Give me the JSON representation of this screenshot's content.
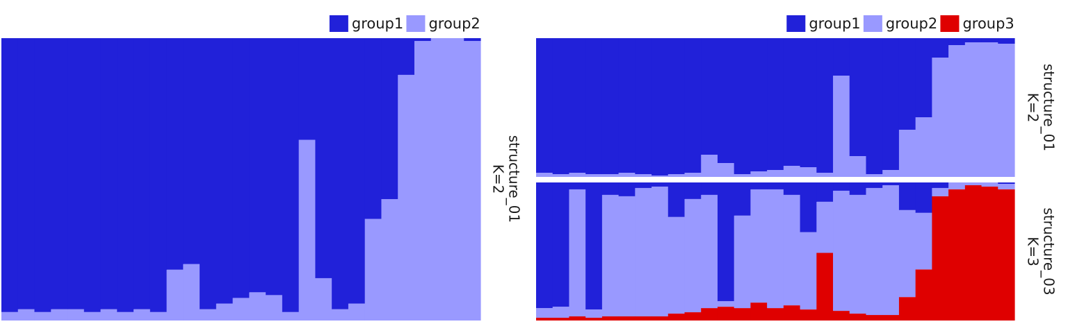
{
  "colors": {
    "group1": "#2121d9",
    "group2": "#9999ff",
    "group3": "#df0000"
  },
  "chart_data": [
    {
      "type": "bar",
      "stacked": true,
      "normalized": true,
      "legend": [
        "group1",
        "group2"
      ],
      "legend_position": "top-right",
      "strip_label": [
        "structure_01",
        "K=2"
      ],
      "n_samples": 29,
      "series": [
        {
          "name": "group1",
          "values": [
            0.97,
            0.96,
            0.97,
            0.96,
            0.96,
            0.97,
            0.96,
            0.97,
            0.96,
            0.97,
            0.82,
            0.8,
            0.96,
            0.94,
            0.92,
            0.9,
            0.91,
            0.97,
            0.36,
            0.85,
            0.96,
            0.94,
            0.64,
            0.57,
            0.13,
            0.01,
            0.0,
            0.0,
            0.01
          ]
        },
        {
          "name": "group2",
          "values": [
            0.03,
            0.04,
            0.03,
            0.04,
            0.04,
            0.03,
            0.04,
            0.03,
            0.04,
            0.03,
            0.18,
            0.2,
            0.04,
            0.06,
            0.08,
            0.1,
            0.09,
            0.03,
            0.64,
            0.15,
            0.04,
            0.06,
            0.36,
            0.43,
            0.87,
            0.99,
            1.0,
            1.0,
            0.99
          ]
        }
      ]
    },
    {
      "type": "bar",
      "stacked": true,
      "normalized": true,
      "legend": [
        "group1",
        "group2",
        "group3"
      ],
      "legend_position": "top-right",
      "panels": [
        {
          "strip_label": [
            "structure_01",
            "K=2"
          ],
          "series": [
            {
              "name": "group1",
              "values": [
                0.97,
                0.98,
                0.97,
                0.98,
                0.98,
                0.97,
                0.98,
                0.99,
                0.98,
                0.97,
                0.84,
                0.9,
                0.98,
                0.96,
                0.95,
                0.92,
                0.93,
                0.97,
                0.27,
                0.85,
                0.98,
                0.95,
                0.66,
                0.57,
                0.14,
                0.05,
                0.03,
                0.03,
                0.04
              ]
            },
            {
              "name": "group2",
              "values": [
                0.03,
                0.02,
                0.03,
                0.02,
                0.02,
                0.03,
                0.02,
                0.01,
                0.02,
                0.03,
                0.16,
                0.1,
                0.02,
                0.04,
                0.05,
                0.08,
                0.07,
                0.03,
                0.73,
                0.15,
                0.02,
                0.05,
                0.34,
                0.43,
                0.86,
                0.95,
                0.97,
                0.97,
                0.96
              ]
            }
          ]
        },
        {
          "strip_label": [
            "structure_03",
            "K=3"
          ],
          "series": [
            {
              "name": "group1",
              "values": [
                0.91,
                0.9,
                0.05,
                0.92,
                0.09,
                0.1,
                0.04,
                0.03,
                0.25,
                0.12,
                0.09,
                0.86,
                0.24,
                0.05,
                0.05,
                0.09,
                0.36,
                0.14,
                0.06,
                0.09,
                0.04,
                0.02,
                0.2,
                0.22,
                0.04,
                0.0,
                0.0,
                0.0,
                0.01
              ]
            },
            {
              "name": "group2",
              "values": [
                0.07,
                0.08,
                0.92,
                0.06,
                0.88,
                0.87,
                0.93,
                0.94,
                0.7,
                0.82,
                0.82,
                0.04,
                0.67,
                0.82,
                0.86,
                0.8,
                0.56,
                0.37,
                0.87,
                0.86,
                0.92,
                0.94,
                0.63,
                0.41,
                0.06,
                0.05,
                0.02,
                0.03,
                0.04
              ]
            },
            {
              "name": "group3",
              "values": [
                0.02,
                0.02,
                0.03,
                0.02,
                0.03,
                0.03,
                0.03,
                0.03,
                0.05,
                0.06,
                0.09,
                0.1,
                0.09,
                0.13,
                0.09,
                0.11,
                0.08,
                0.49,
                0.07,
                0.05,
                0.04,
                0.04,
                0.17,
                0.37,
                0.9,
                0.95,
                0.98,
                0.97,
                0.95
              ]
            }
          ]
        }
      ]
    }
  ]
}
